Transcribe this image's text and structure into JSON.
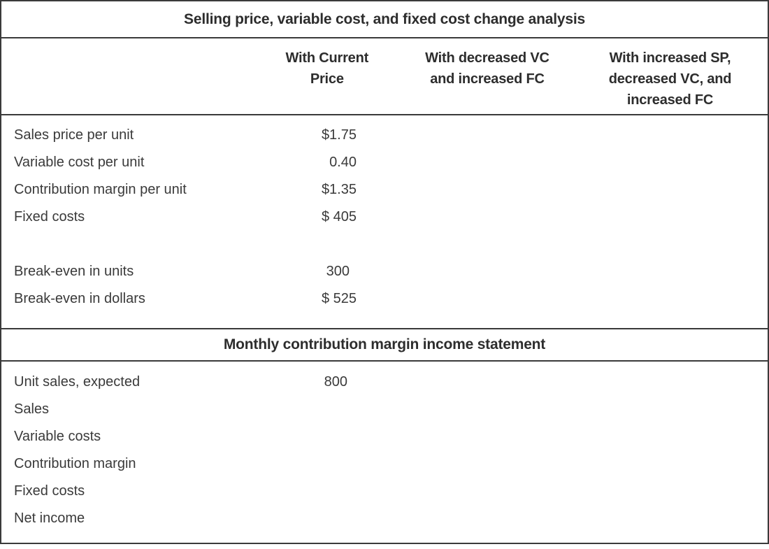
{
  "analysis_table": {
    "section1": {
      "title": "Selling price, variable cost, and fixed cost change analysis",
      "column_headers": {
        "col2": {
          "line1": "With Current",
          "line2": "Price"
        },
        "col3": {
          "line1": "With decreased VC",
          "line2": "and increased FC"
        },
        "col4": {
          "line1": "With increased SP,",
          "line2": "decreased VC, and",
          "line3": "increased FC"
        }
      },
      "rows": [
        {
          "label": "Sales price per unit",
          "value": "$1.75"
        },
        {
          "label": "Variable cost per unit",
          "value": "0.40"
        },
        {
          "label": "Contribution margin per unit",
          "value": "$1.35"
        },
        {
          "label": "Fixed costs",
          "value": "$ 405"
        },
        {
          "label": "",
          "value": ""
        },
        {
          "label": "Break-even in units",
          "value": "300"
        },
        {
          "label": "Break-even in dollars",
          "value": "$ 525"
        }
      ]
    },
    "section2": {
      "title": "Monthly contribution margin income statement",
      "rows": [
        {
          "label": "Unit sales, expected",
          "value": "800"
        },
        {
          "label": "Sales",
          "value": ""
        },
        {
          "label": "Variable costs",
          "value": ""
        },
        {
          "label": "Contribution margin",
          "value": ""
        },
        {
          "label": "Fixed costs",
          "value": ""
        },
        {
          "label": "Net income",
          "value": ""
        }
      ]
    },
    "colors": {
      "text": "#3a3a3a",
      "bold_text": "#2d2d2d",
      "border": "#3a3a3a",
      "background": "#ffffff"
    }
  }
}
